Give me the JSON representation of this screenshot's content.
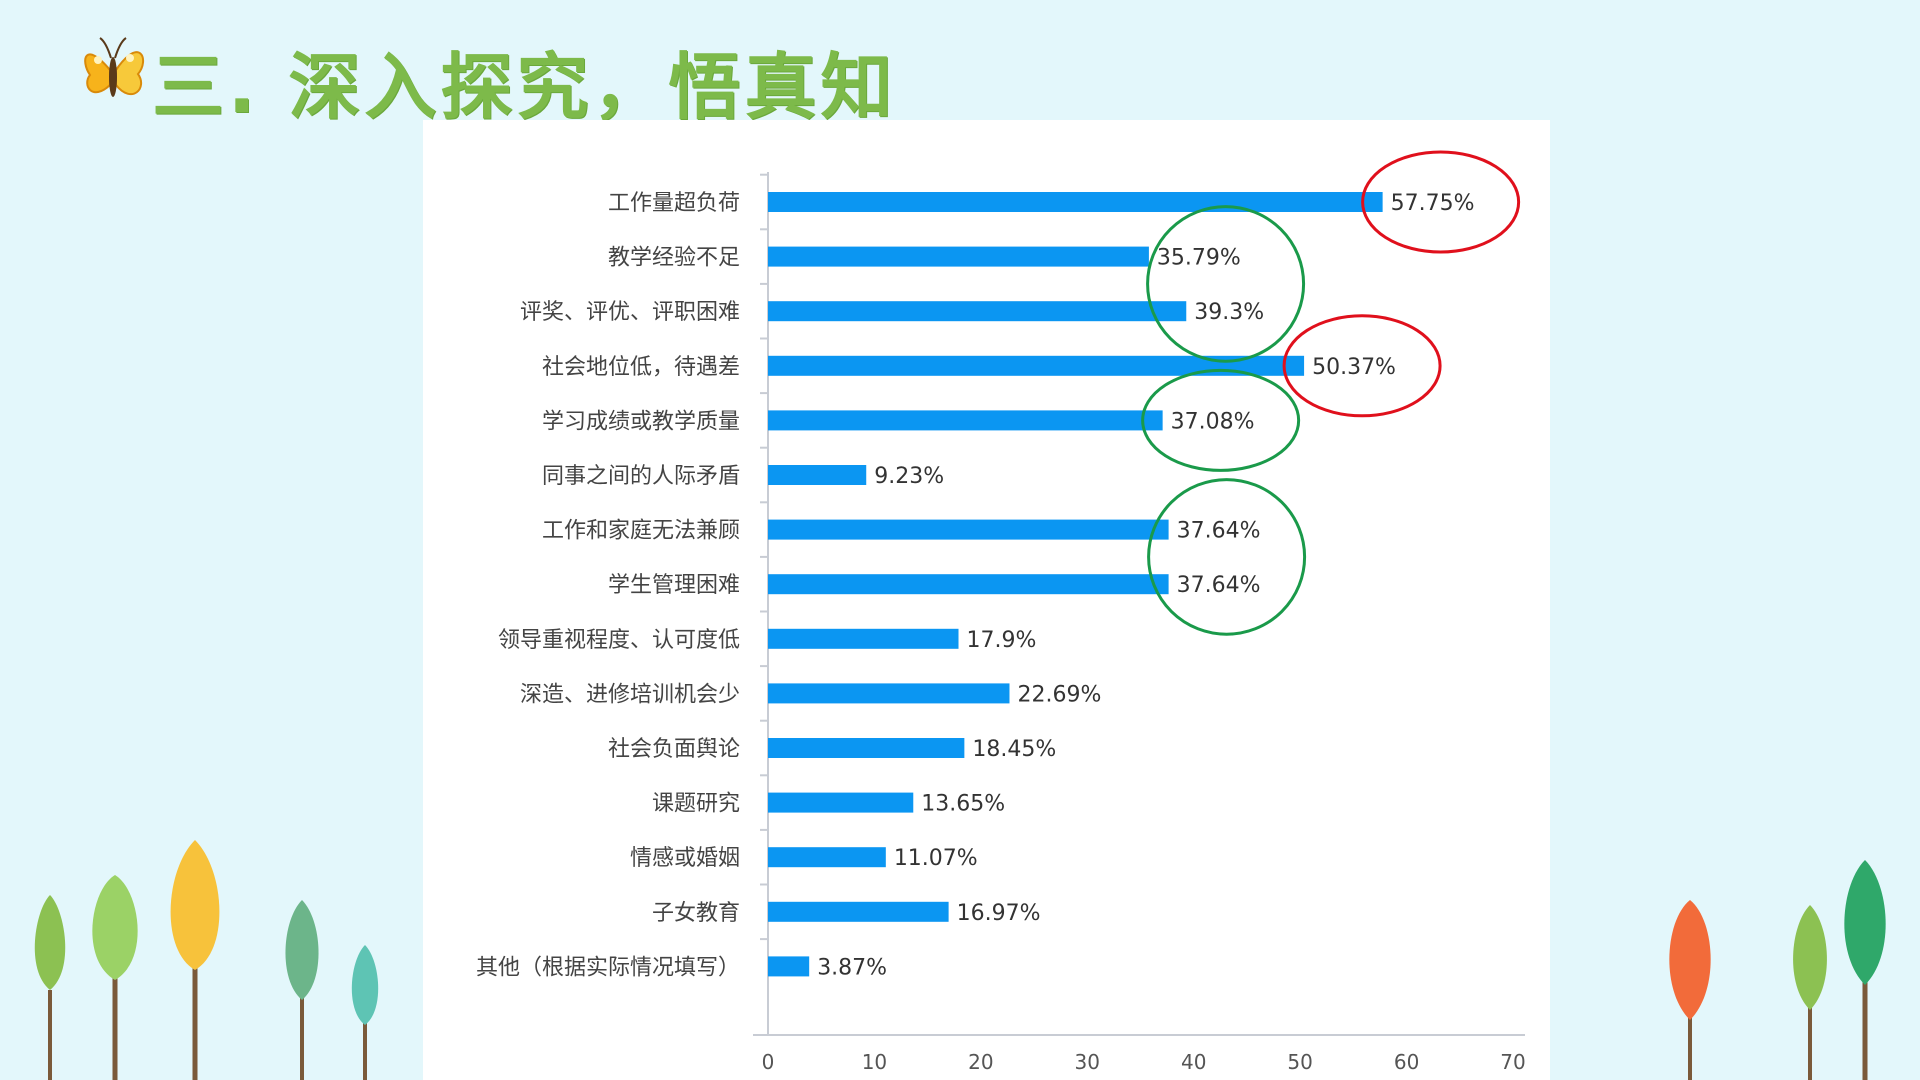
{
  "slide": {
    "title": "三.  深入探究，悟真知",
    "title_color": "#7dba4a",
    "background": "#e3f7fb",
    "icon": "butterfly-icon"
  },
  "chart_data": {
    "type": "bar",
    "orientation": "horizontal",
    "categories": [
      "工作量超负荷",
      "教学经验不足",
      "评奖、评优、评职困难",
      "社会地位低，待遇差",
      "学习成绩或教学质量",
      "同事之间的人际矛盾",
      "工作和家庭无法兼顾",
      "学生管理困难",
      "领导重视程度、认可度低",
      "深造、进修培训机会少",
      "社会负面舆论",
      "课题研究",
      "情感或婚姻",
      "子女教育",
      "其他（根据实际情况填写）"
    ],
    "values": [
      57.75,
      35.79,
      39.3,
      50.37,
      37.08,
      9.23,
      37.64,
      37.64,
      17.9,
      22.69,
      18.45,
      13.65,
      11.07,
      16.97,
      3.87
    ],
    "value_labels": [
      "57.75%",
      "35.79%",
      "39.3%",
      "50.37%",
      "37.08%",
      "9.23%",
      "37.64%",
      "37.64%",
      "17.9%",
      "22.69%",
      "18.45%",
      "13.65%",
      "11.07%",
      "16.97%",
      "3.87%"
    ],
    "xlim": [
      0,
      70
    ],
    "xticks": [
      "0",
      "10",
      "20",
      "30",
      "40",
      "50",
      "60",
      "70"
    ],
    "bar_color": "#0b96f2",
    "grid": false,
    "annotations": {
      "red_circles": [
        0,
        3
      ],
      "green_circles": [
        [
          1,
          2
        ],
        [
          4
        ],
        [
          6,
          7
        ]
      ],
      "red_color": "#e0101c",
      "green_color": "#1a9a4a"
    }
  }
}
